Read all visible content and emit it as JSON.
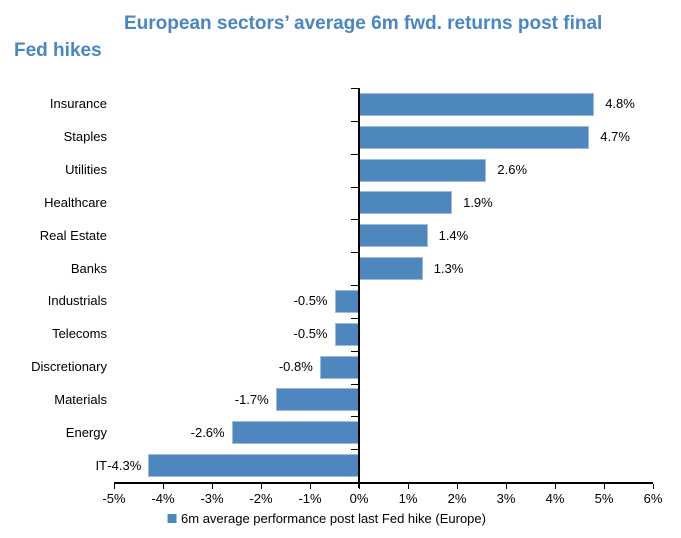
{
  "title": {
    "line1": "European sectors’ average 6m fwd. returns post final",
    "line2": "Fed hikes"
  },
  "chart_data": {
    "type": "bar",
    "orientation": "horizontal",
    "title": "European sectors’ average 6m fwd. returns post final Fed hikes",
    "categories": [
      "Insurance",
      "Staples",
      "Utilities",
      "Healthcare",
      "Real Estate",
      "Banks",
      "Industrials",
      "Telecoms",
      "Discretionary",
      "Materials",
      "Energy",
      "IT"
    ],
    "values": [
      4.8,
      4.7,
      2.6,
      1.9,
      1.4,
      1.3,
      -0.5,
      -0.5,
      -0.8,
      -1.7,
      -2.6,
      -4.3
    ],
    "value_labels": [
      "4.8%",
      "4.7%",
      "2.6%",
      "1.9%",
      "1.4%",
      "1.3%",
      "-0.5%",
      "-0.5%",
      "-0.8%",
      "-1.7%",
      "-2.6%",
      "-4.3%"
    ],
    "xlim": [
      -5,
      6
    ],
    "x_tick_values": [
      -5,
      -4,
      -3,
      -2,
      -1,
      0,
      1,
      2,
      3,
      4,
      5,
      6
    ],
    "x_tick_labels": [
      "-5%",
      "-4%",
      "-3%",
      "-2%",
      "-1%",
      "0%",
      "1%",
      "2%",
      "3%",
      "4%",
      "5%",
      "6%"
    ],
    "grid": false,
    "legend_position": "bottom",
    "legend": [
      "6m average performance post last Fed hike (Europe)"
    ],
    "colors": {
      "bar_fill": "#4E86BE",
      "bar_border": "#9DBBDD",
      "title_text": "#4886C7",
      "axis": "#000000"
    }
  }
}
